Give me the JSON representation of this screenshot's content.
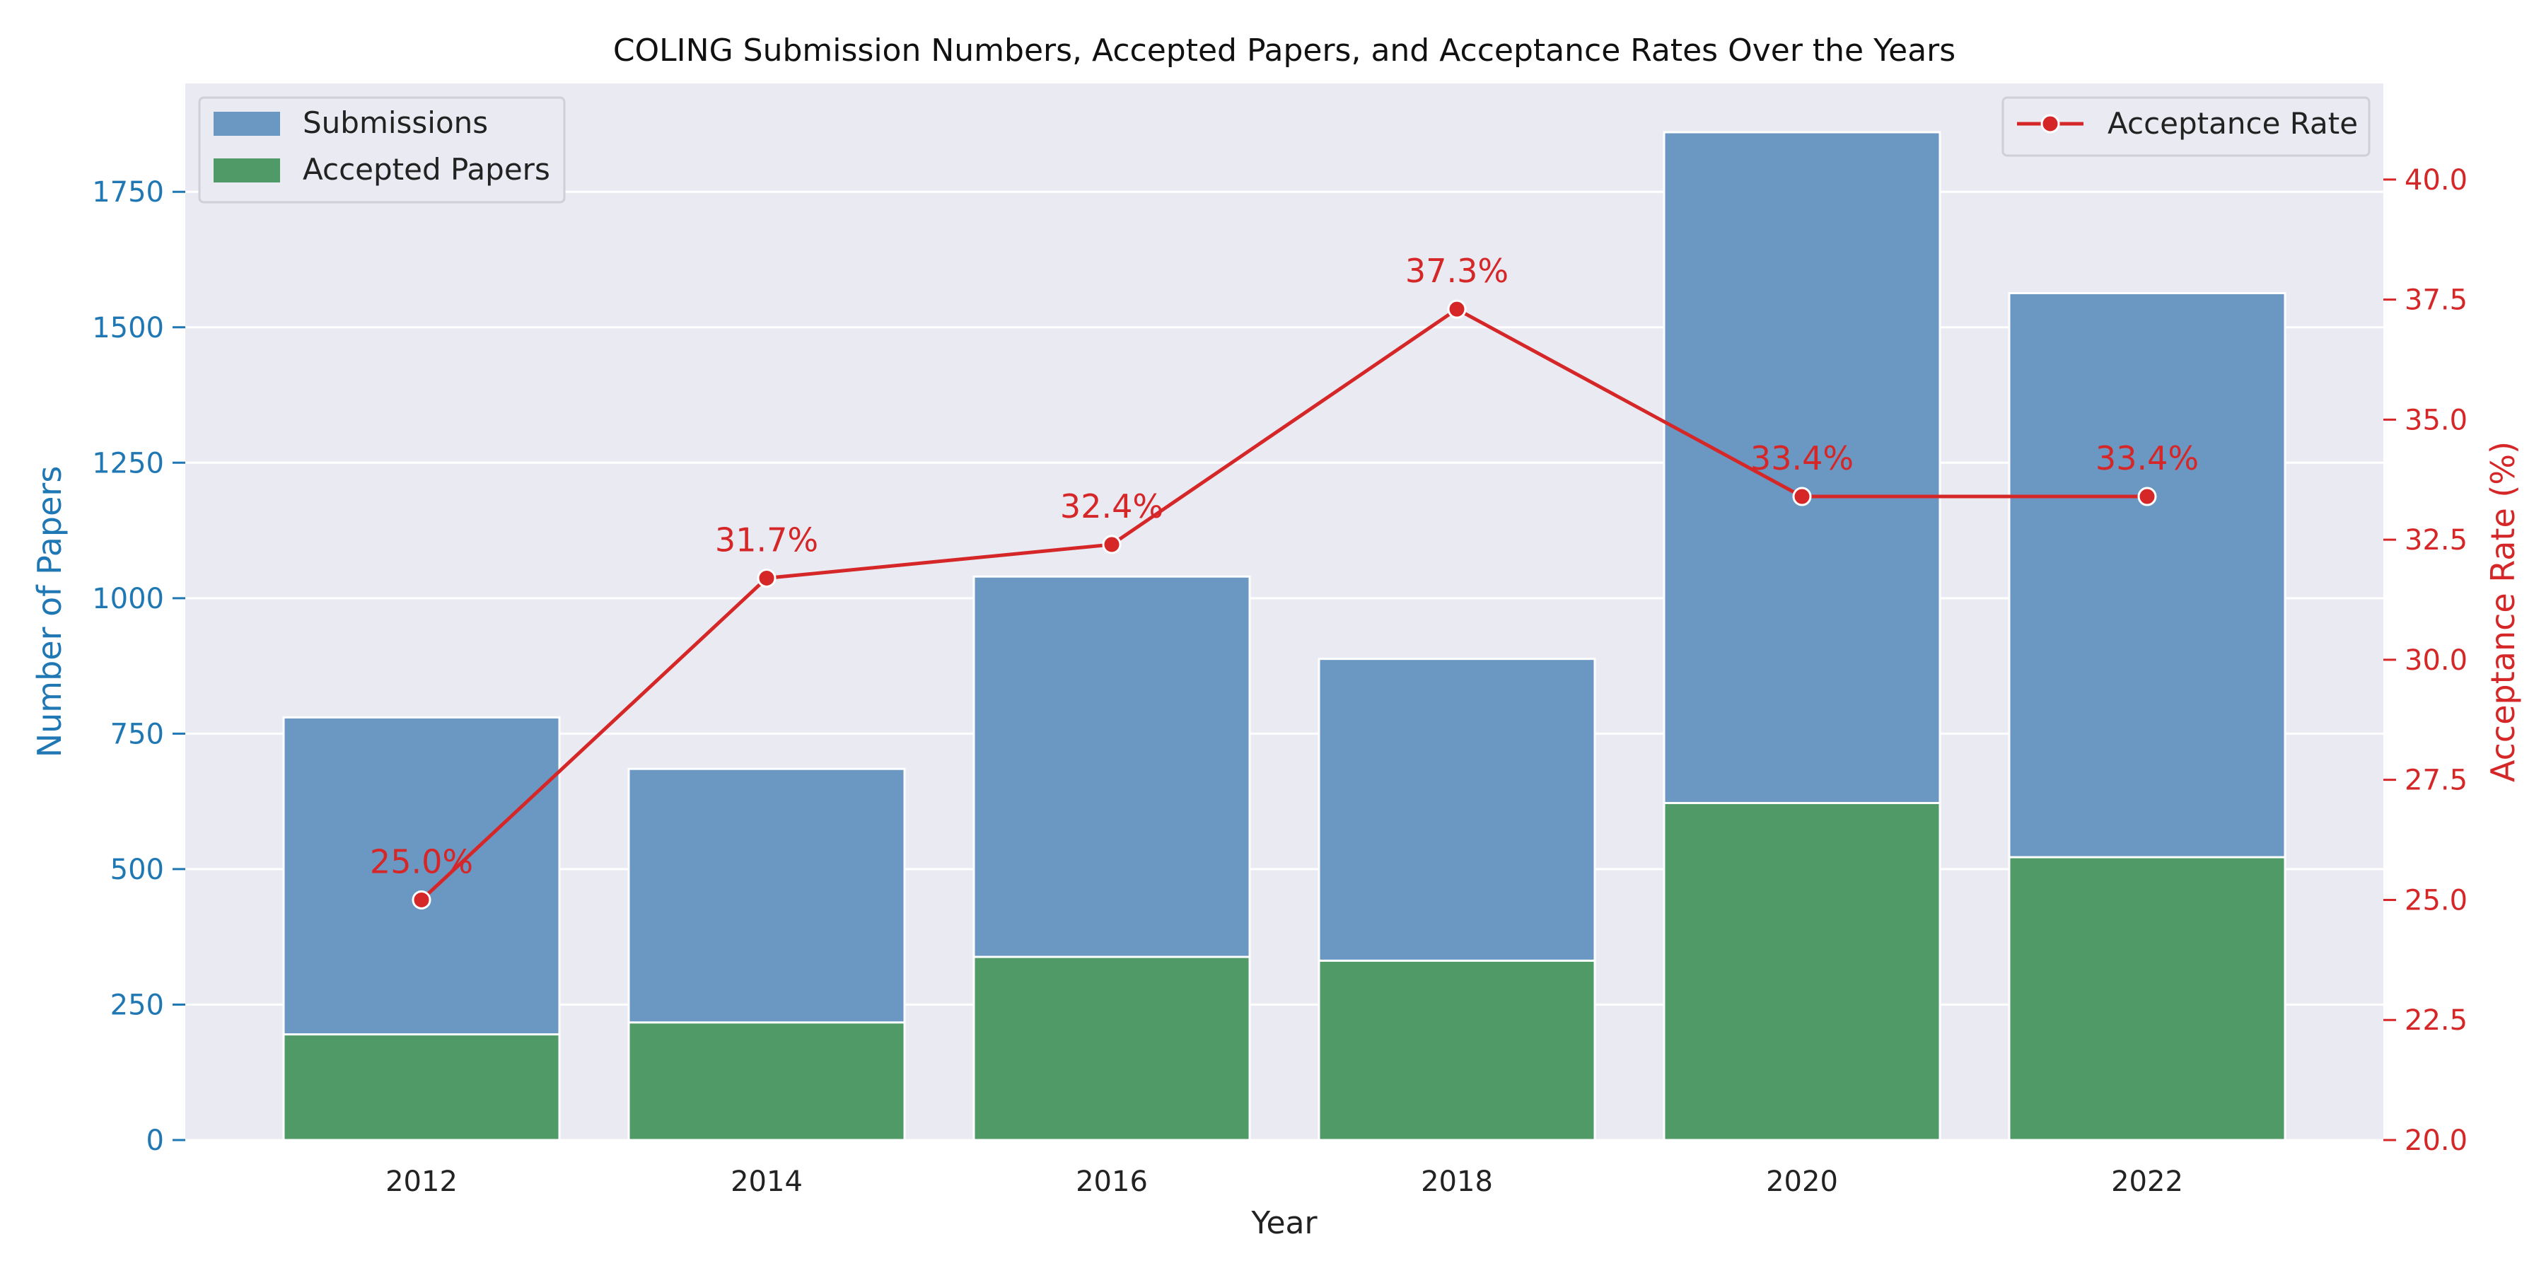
{
  "chart_data": {
    "type": "bar",
    "title": "COLING Submission Numbers, Accepted Papers, and Acceptance Rates Over the Years",
    "xlabel": "Year",
    "ylabel": "Number of Papers",
    "y2label": "Acceptance Rate (%)",
    "categories": [
      "2012",
      "2014",
      "2016",
      "2018",
      "2020",
      "2022"
    ],
    "ylim": [
      0,
      1950
    ],
    "y2lim": [
      20,
      42
    ],
    "yticks": [
      "0",
      "250",
      "500",
      "750",
      "1000",
      "1250",
      "1500",
      "1750"
    ],
    "y2ticks": [
      "20.0",
      "22.5",
      "25.0",
      "27.5",
      "30.0",
      "32.5",
      "35.0",
      "37.5",
      "40.0"
    ],
    "grid": true,
    "series": [
      {
        "name": "Submissions",
        "kind": "bar",
        "color": "#6a98c2",
        "values": [
          780,
          685,
          1040,
          888,
          1860,
          1563
        ]
      },
      {
        "name": "Accepted Papers",
        "kind": "bar",
        "color": "#4f9a66",
        "values": [
          195,
          217,
          338,
          331,
          622,
          522
        ]
      },
      {
        "name": "Acceptance Rate",
        "kind": "line",
        "axis": "right",
        "color": "#d62728",
        "values": [
          25.0,
          31.7,
          32.4,
          37.3,
          33.4,
          33.4
        ],
        "labels": [
          "25.0%",
          "31.7%",
          "32.4%",
          "37.3%",
          "33.4%",
          "33.4%"
        ]
      }
    ],
    "legend_left": "top-left",
    "legend_right": "top-right",
    "colors": {
      "left_axis": "#1f77b4",
      "right_axis": "#d62728",
      "plot_bg": "#eaeaf2"
    }
  }
}
